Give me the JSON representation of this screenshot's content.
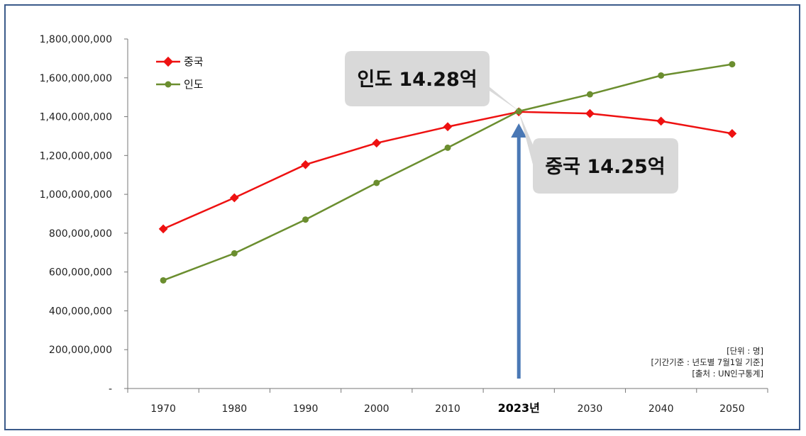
{
  "chart_data": {
    "type": "line",
    "x": [
      "1970",
      "1980",
      "1990",
      "2000",
      "2010",
      "2023년",
      "2030",
      "2040",
      "2050"
    ],
    "highlight_x": "2023년",
    "series": [
      {
        "name": "중국",
        "color": "#ee1111",
        "marker": "diamond",
        "values": [
          822000000,
          982000000,
          1153000000,
          1264000000,
          1348000000,
          1425000000,
          1416000000,
          1377000000,
          1313000000
        ]
      },
      {
        "name": "인도",
        "color": "#6b8e2f",
        "marker": "circle",
        "values": [
          557000000,
          696000000,
          870000000,
          1059000000,
          1240000000,
          1428000000,
          1515000000,
          1612000000,
          1670000000
        ]
      }
    ],
    "y_ticks": [
      "-",
      "200,000,000",
      "400,000,000",
      "600,000,000",
      "800,000,000",
      "1,000,000,000",
      "1,200,000,000",
      "1,400,000,000",
      "1,600,000,000",
      "1,800,000,000"
    ],
    "ylim": [
      0,
      1800000000
    ],
    "grid": false,
    "legend_position": "top-left",
    "annotations": [
      {
        "text": "인도 14.28억"
      },
      {
        "text": "중국 14.25억"
      }
    ],
    "arrow_color": "#4a78b5",
    "notes": [
      "[단위 : 명]",
      "[기간기준 : 년도별 7월1일 기준]",
      "[출처 : UN인구통계]"
    ]
  }
}
